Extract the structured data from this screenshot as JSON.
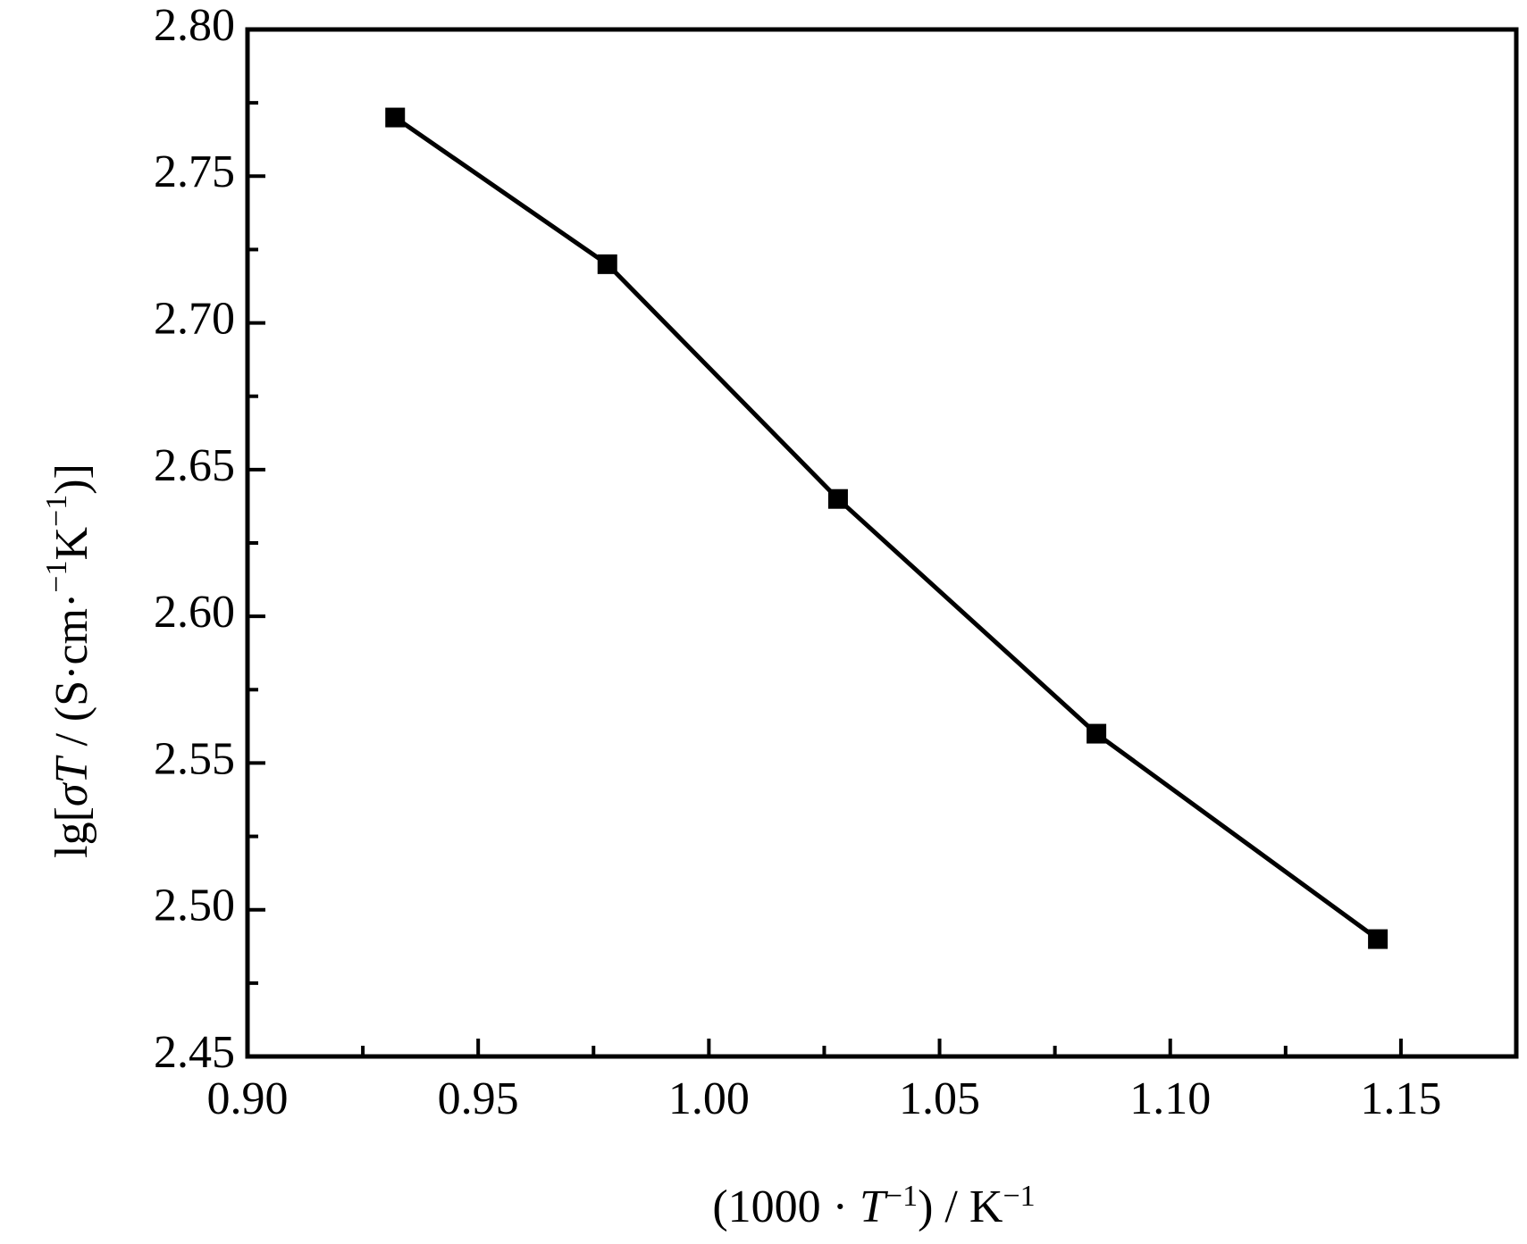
{
  "chart_data": {
    "type": "line",
    "title": "",
    "xlabel": "(1000 · T⁻¹) / K⁻¹",
    "ylabel": "lg[σT / (S·cm⁻¹K⁻¹)]",
    "xlim": [
      0.9,
      1.175
    ],
    "ylim": [
      2.45,
      2.8
    ],
    "x_ticks": [
      "0.90",
      "0.95",
      "1.00",
      "1.05",
      "1.10",
      "1.15"
    ],
    "y_ticks": [
      "2.45",
      "2.50",
      "2.55",
      "2.60",
      "2.65",
      "2.70",
      "2.75",
      "2.80"
    ],
    "grid": false,
    "legend": "none",
    "marker": "square",
    "line_color": "#000000",
    "series": [
      {
        "x": [
          0.932,
          0.978,
          1.028,
          1.084,
          1.145
        ],
        "y": [
          2.77,
          2.72,
          2.64,
          2.56,
          2.49
        ]
      }
    ]
  }
}
